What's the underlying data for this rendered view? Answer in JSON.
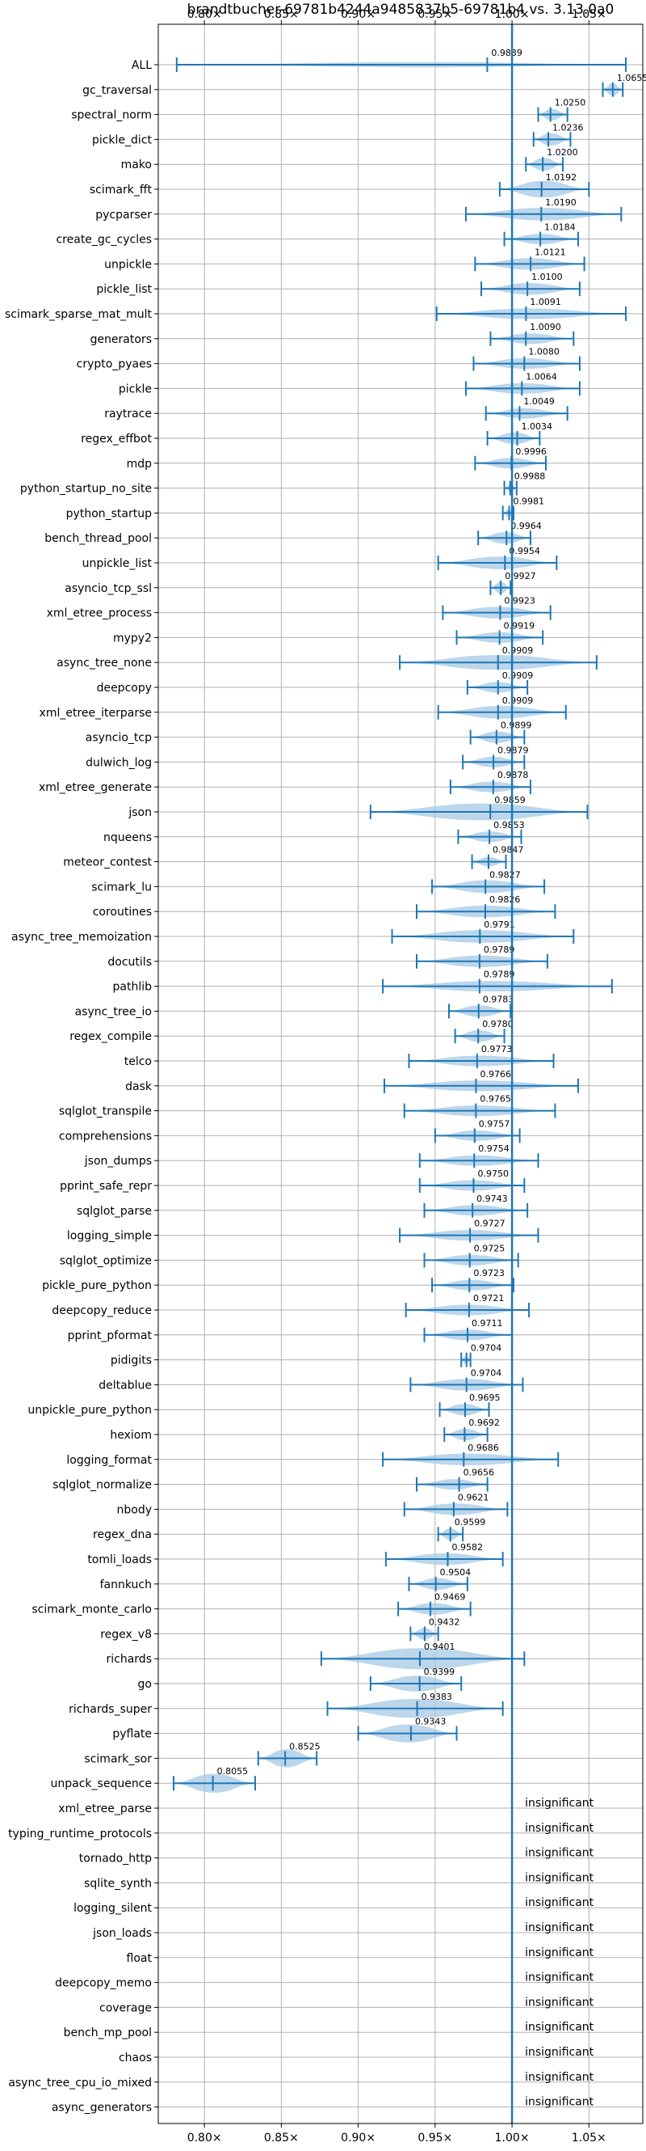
{
  "chart_data": {
    "type": "violin",
    "title": "brandtbucher-69781b4244a9485837b5-69781b4 vs. 3.13.0a0",
    "xlim": [
      0.77,
      1.085
    ],
    "reference_line": 1.0,
    "grid": true,
    "x_ticks": [
      {
        "value": 0.8,
        "label": "0.80×"
      },
      {
        "value": 0.85,
        "label": "0.85×"
      },
      {
        "value": 0.9,
        "label": "0.90×"
      },
      {
        "value": 0.95,
        "label": "0.95×"
      },
      {
        "value": 1.0,
        "label": "1.00×"
      },
      {
        "value": 1.05,
        "label": "1.05×"
      }
    ],
    "colors": {
      "violin": "#a6c8e4",
      "whisker": "#1f77b4",
      "reference": "#1f77b4",
      "grid": "#b0b0b0"
    },
    "insignificant_label": "insignificant",
    "benchmarks": [
      {
        "name": "ALL",
        "mean": 0.9839,
        "label": "0.9839",
        "min": 0.782,
        "max": 1.074,
        "width": 0.25
      },
      {
        "name": "gc_traversal",
        "mean": 1.0655,
        "label": "1.0655",
        "min": 1.059,
        "max": 1.072,
        "width": 0.6
      },
      {
        "name": "spectral_norm",
        "mean": 1.025,
        "label": "1.0250",
        "min": 1.017,
        "max": 1.036,
        "width": 0.55
      },
      {
        "name": "pickle_dict",
        "mean": 1.0236,
        "label": "1.0236",
        "min": 1.014,
        "max": 1.038,
        "width": 0.6
      },
      {
        "name": "mako",
        "mean": 1.02,
        "label": "1.0200",
        "min": 1.009,
        "max": 1.033,
        "width": 0.6
      },
      {
        "name": "scimark_fft",
        "mean": 1.0192,
        "label": "1.0192",
        "min": 0.992,
        "max": 1.05,
        "width": 0.8
      },
      {
        "name": "pycparser",
        "mean": 1.019,
        "label": "1.0190",
        "min": 0.97,
        "max": 1.071,
        "width": 0.6
      },
      {
        "name": "create_gc_cycles",
        "mean": 1.0184,
        "label": "1.0184",
        "min": 0.995,
        "max": 1.043,
        "width": 0.5
      },
      {
        "name": "unpickle",
        "mean": 1.0121,
        "label": "1.0121",
        "min": 0.976,
        "max": 1.047,
        "width": 0.55
      },
      {
        "name": "pickle_list",
        "mean": 1.01,
        "label": "1.0100",
        "min": 0.98,
        "max": 1.044,
        "width": 0.55
      },
      {
        "name": "scimark_sparse_mat_mult",
        "mean": 1.0091,
        "label": "1.0091",
        "min": 0.951,
        "max": 1.074,
        "width": 0.5
      },
      {
        "name": "generators",
        "mean": 1.009,
        "label": "1.0090",
        "min": 0.986,
        "max": 1.04,
        "width": 0.5
      },
      {
        "name": "crypto_pyaes",
        "mean": 1.008,
        "label": "1.0080",
        "min": 0.975,
        "max": 1.044,
        "width": 0.5
      },
      {
        "name": "pickle",
        "mean": 1.0064,
        "label": "1.0064",
        "min": 0.97,
        "max": 1.044,
        "width": 0.5
      },
      {
        "name": "raytrace",
        "mean": 1.0049,
        "label": "1.0049",
        "min": 0.983,
        "max": 1.036,
        "width": 0.5
      },
      {
        "name": "regex_effbot",
        "mean": 1.0034,
        "label": "1.0034",
        "min": 0.984,
        "max": 1.018,
        "width": 0.55
      },
      {
        "name": "mdp",
        "mean": 0.9996,
        "label": "0.9996",
        "min": 0.976,
        "max": 1.022,
        "width": 0.5
      },
      {
        "name": "python_startup_no_site",
        "mean": 0.9988,
        "label": "0.9988",
        "min": 0.995,
        "max": 1.003,
        "width": 0.35
      },
      {
        "name": "python_startup",
        "mean": 0.9981,
        "label": "0.9981",
        "min": 0.994,
        "max": 1.001,
        "width": 0.35
      },
      {
        "name": "bench_thread_pool",
        "mean": 0.9964,
        "label": "0.9964",
        "min": 0.978,
        "max": 1.012,
        "width": 0.55
      },
      {
        "name": "unpickle_list",
        "mean": 0.9954,
        "label": "0.9954",
        "min": 0.952,
        "max": 1.029,
        "width": 0.6
      },
      {
        "name": "asyncio_tcp_ssl",
        "mean": 0.9927,
        "label": "0.9927",
        "min": 0.986,
        "max": 0.999,
        "width": 0.55
      },
      {
        "name": "xml_etree_process",
        "mean": 0.9923,
        "label": "0.9923",
        "min": 0.955,
        "max": 1.025,
        "width": 0.55
      },
      {
        "name": "mypy2",
        "mean": 0.9919,
        "label": "0.9919",
        "min": 0.964,
        "max": 1.02,
        "width": 0.5
      },
      {
        "name": "async_tree_none",
        "mean": 0.9909,
        "label": "0.9909",
        "min": 0.927,
        "max": 1.055,
        "width": 0.7
      },
      {
        "name": "deepcopy",
        "mean": 0.9909,
        "label": "0.9909",
        "min": 0.971,
        "max": 1.01,
        "width": 0.5
      },
      {
        "name": "xml_etree_iterparse",
        "mean": 0.9909,
        "label": "0.9909",
        "min": 0.952,
        "max": 1.035,
        "width": 0.6
      },
      {
        "name": "asyncio_tcp",
        "mean": 0.9899,
        "label": "0.9899",
        "min": 0.973,
        "max": 1.008,
        "width": 0.55
      },
      {
        "name": "dulwich_log",
        "mean": 0.9879,
        "label": "0.9879",
        "min": 0.968,
        "max": 1.008,
        "width": 0.5
      },
      {
        "name": "xml_etree_generate",
        "mean": 0.9878,
        "label": "0.9878",
        "min": 0.96,
        "max": 1.012,
        "width": 0.5
      },
      {
        "name": "json",
        "mean": 0.9859,
        "label": "0.9859",
        "min": 0.908,
        "max": 1.049,
        "width": 0.8
      },
      {
        "name": "nqueens",
        "mean": 0.9853,
        "label": "0.9853",
        "min": 0.965,
        "max": 1.006,
        "width": 0.5
      },
      {
        "name": "meteor_contest",
        "mean": 0.9847,
        "label": "0.9847",
        "min": 0.974,
        "max": 0.996,
        "width": 0.45
      },
      {
        "name": "scimark_lu",
        "mean": 0.9827,
        "label": "0.9827",
        "min": 0.948,
        "max": 1.021,
        "width": 0.6
      },
      {
        "name": "coroutines",
        "mean": 0.9826,
        "label": "0.9826",
        "min": 0.938,
        "max": 1.028,
        "width": 0.55
      },
      {
        "name": "async_tree_memoization",
        "mean": 0.9791,
        "label": "0.9791",
        "min": 0.922,
        "max": 1.04,
        "width": 0.6
      },
      {
        "name": "docutils",
        "mean": 0.9789,
        "label": "0.9789",
        "min": 0.938,
        "max": 1.023,
        "width": 0.55
      },
      {
        "name": "pathlib",
        "mean": 0.9789,
        "label": "0.9789",
        "min": 0.916,
        "max": 1.065,
        "width": 0.5
      },
      {
        "name": "async_tree_io",
        "mean": 0.9783,
        "label": "0.9783",
        "min": 0.959,
        "max": 0.999,
        "width": 0.55
      },
      {
        "name": "regex_compile",
        "mean": 0.978,
        "label": "0.9780",
        "min": 0.963,
        "max": 0.995,
        "width": 0.55
      },
      {
        "name": "telco",
        "mean": 0.9773,
        "label": "0.9773",
        "min": 0.933,
        "max": 1.027,
        "width": 0.5
      },
      {
        "name": "dask",
        "mean": 0.9766,
        "label": "0.9766",
        "min": 0.917,
        "max": 1.043,
        "width": 0.5
      },
      {
        "name": "sqlglot_transpile",
        "mean": 0.9765,
        "label": "0.9765",
        "min": 0.93,
        "max": 1.028,
        "width": 0.5
      },
      {
        "name": "comprehensions",
        "mean": 0.9757,
        "label": "0.9757",
        "min": 0.95,
        "max": 1.005,
        "width": 0.5
      },
      {
        "name": "json_dumps",
        "mean": 0.9754,
        "label": "0.9754",
        "min": 0.94,
        "max": 1.017,
        "width": 0.5
      },
      {
        "name": "pprint_safe_repr",
        "mean": 0.975,
        "label": "0.9750",
        "min": 0.94,
        "max": 1.008,
        "width": 0.5
      },
      {
        "name": "sqlglot_parse",
        "mean": 0.9743,
        "label": "0.9743",
        "min": 0.943,
        "max": 1.01,
        "width": 0.5
      },
      {
        "name": "logging_simple",
        "mean": 0.9727,
        "label": "0.9727",
        "min": 0.927,
        "max": 1.017,
        "width": 0.5
      },
      {
        "name": "sqlglot_optimize",
        "mean": 0.9725,
        "label": "0.9725",
        "min": 0.943,
        "max": 1.004,
        "width": 0.5
      },
      {
        "name": "pickle_pure_python",
        "mean": 0.9723,
        "label": "0.9723",
        "min": 0.948,
        "max": 1.001,
        "width": 0.5
      },
      {
        "name": "deepcopy_reduce",
        "mean": 0.9721,
        "label": "0.9721",
        "min": 0.931,
        "max": 1.011,
        "width": 0.5
      },
      {
        "name": "pprint_pformat",
        "mean": 0.9711,
        "label": "0.9711",
        "min": 0.943,
        "max": 1.0,
        "width": 0.5
      },
      {
        "name": "pidigits",
        "mean": 0.9704,
        "label": "0.9704",
        "min": 0.967,
        "max": 0.973,
        "width": 0.4
      },
      {
        "name": "deltablue",
        "mean": 0.9704,
        "label": "0.9704",
        "min": 0.934,
        "max": 1.007,
        "width": 0.55
      },
      {
        "name": "unpickle_pure_python",
        "mean": 0.9695,
        "label": "0.9695",
        "min": 0.953,
        "max": 0.985,
        "width": 0.55
      },
      {
        "name": "hexiom",
        "mean": 0.9692,
        "label": "0.9692",
        "min": 0.956,
        "max": 0.984,
        "width": 0.55
      },
      {
        "name": "logging_format",
        "mean": 0.9686,
        "label": "0.9686",
        "min": 0.916,
        "max": 1.03,
        "width": 0.55
      },
      {
        "name": "sqlglot_normalize",
        "mean": 0.9656,
        "label": "0.9656",
        "min": 0.938,
        "max": 0.984,
        "width": 0.5
      },
      {
        "name": "nbody",
        "mean": 0.9621,
        "label": "0.9621",
        "min": 0.93,
        "max": 0.997,
        "width": 0.55
      },
      {
        "name": "regex_dna",
        "mean": 0.9599,
        "label": "0.9599",
        "min": 0.952,
        "max": 0.968,
        "width": 0.55
      },
      {
        "name": "tomli_loads",
        "mean": 0.9582,
        "label": "0.9582",
        "min": 0.918,
        "max": 0.994,
        "width": 0.55
      },
      {
        "name": "fannkuch",
        "mean": 0.9504,
        "label": "0.9504",
        "min": 0.933,
        "max": 0.971,
        "width": 0.55
      },
      {
        "name": "scimark_monte_carlo",
        "mean": 0.9469,
        "label": "0.9469",
        "min": 0.926,
        "max": 0.973,
        "width": 0.55
      },
      {
        "name": "regex_v8",
        "mean": 0.9432,
        "label": "0.9432",
        "min": 0.934,
        "max": 0.952,
        "width": 0.55
      },
      {
        "name": "richards",
        "mean": 0.9401,
        "label": "0.9401",
        "min": 0.876,
        "max": 1.008,
        "width": 1.0
      },
      {
        "name": "go",
        "mean": 0.9399,
        "label": "0.9399",
        "min": 0.908,
        "max": 0.967,
        "width": 0.75
      },
      {
        "name": "richards_super",
        "mean": 0.9383,
        "label": "0.9383",
        "min": 0.88,
        "max": 0.994,
        "width": 0.9
      },
      {
        "name": "pyflate",
        "mean": 0.9343,
        "label": "0.9343",
        "min": 0.9,
        "max": 0.964,
        "width": 0.85
      },
      {
        "name": "scimark_sor",
        "mean": 0.8525,
        "label": "0.8525",
        "min": 0.835,
        "max": 0.873,
        "width": 0.85
      },
      {
        "name": "unpack_sequence",
        "mean": 0.8055,
        "label": "0.8055",
        "min": 0.78,
        "max": 0.833,
        "width": 0.9
      },
      {
        "name": "xml_etree_parse",
        "insignificant": true
      },
      {
        "name": "typing_runtime_protocols",
        "insignificant": true
      },
      {
        "name": "tornado_http",
        "insignificant": true
      },
      {
        "name": "sqlite_synth",
        "insignificant": true
      },
      {
        "name": "logging_silent",
        "insignificant": true
      },
      {
        "name": "json_loads",
        "insignificant": true
      },
      {
        "name": "float",
        "insignificant": true
      },
      {
        "name": "deepcopy_memo",
        "insignificant": true
      },
      {
        "name": "coverage",
        "insignificant": true
      },
      {
        "name": "bench_mp_pool",
        "insignificant": true
      },
      {
        "name": "chaos",
        "insignificant": true
      },
      {
        "name": "async_tree_cpu_io_mixed",
        "insignificant": true
      },
      {
        "name": "async_generators",
        "insignificant": true
      }
    ]
  }
}
